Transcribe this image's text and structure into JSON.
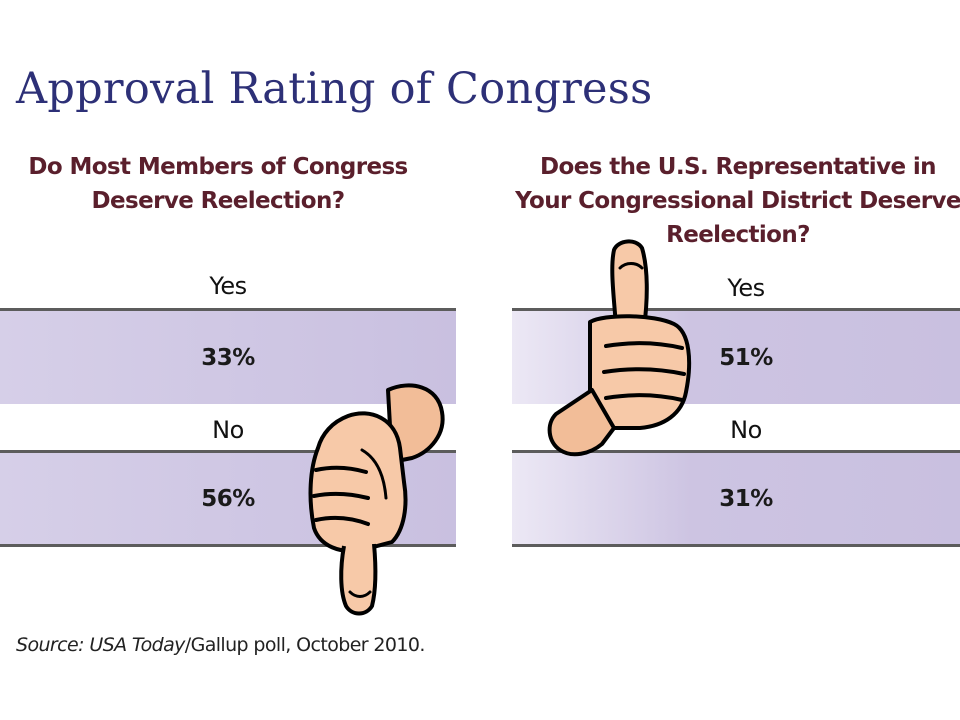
{
  "title": "Approval Rating of Congress",
  "chart_data": [
    {
      "type": "table",
      "title": "Do Most Members of Congress Deserve Reelection?",
      "title_lines": [
        "Do Most Members of Congress",
        "Deserve Reelection?"
      ],
      "categories": [
        "Yes",
        "No"
      ],
      "values": [
        33,
        56
      ],
      "value_labels": [
        "33%",
        "56%"
      ]
    },
    {
      "type": "table",
      "title": "Does the U.S. Representative in Your Congressional District Deserve Reelection?",
      "title_lines": [
        "Does the U.S. Representative in",
        "Your Congressional District Deserve",
        "Reelection?"
      ],
      "categories": [
        "Yes",
        "No"
      ],
      "values": [
        51,
        31
      ],
      "value_labels": [
        "51%",
        "31%"
      ]
    }
  ],
  "source": {
    "prefix": "Source: ",
    "publication": "USA Today",
    "suffix": "/Gallup poll, October 2010."
  },
  "icons": {
    "left": "thumbs-down-icon",
    "right": "thumbs-up-icon"
  },
  "colors": {
    "title": "#2d3077",
    "question": "#5a1f2c",
    "band": "#cfc6e3",
    "rule": "#5c5c5c",
    "skin": "#f7c9a8"
  }
}
